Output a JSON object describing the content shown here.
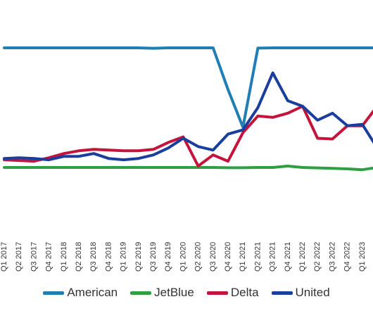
{
  "chart_data": {
    "type": "line",
    "x": [
      "Q1 2017",
      "Q2 2017",
      "Q3 2017",
      "Q4 2017",
      "Q1 2018",
      "Q2 2018",
      "Q3 2018",
      "Q4 2018",
      "Q1 2019",
      "Q2 2019",
      "Q3 2019",
      "Q4 2019",
      "Q1 2020",
      "Q2 2020",
      "Q3 2020",
      "Q4 2020",
      "Q1 2021",
      "Q2 2021",
      "Q3 2021",
      "Q4 2021",
      "Q1 2022",
      "Q2 2022",
      "Q3 2022",
      "Q4 2022",
      "Q1 2023",
      "Q2 2023"
    ],
    "series": [
      {
        "name": "American",
        "color": "#1f7fb5",
        "values": [
          100,
          100,
          100,
          100,
          100,
          100,
          100,
          100,
          100,
          100,
          99.7,
          100,
          100,
          100,
          100,
          70,
          43,
          99.8,
          100,
          100,
          100,
          100,
          100,
          100,
          100,
          100
        ]
      },
      {
        "name": "JetBlue",
        "color": "#2ea043",
        "values": [
          14,
          14,
          14,
          14,
          14,
          14,
          14,
          14,
          14,
          14,
          14,
          14,
          14,
          14,
          14,
          13.8,
          13.8,
          14,
          14,
          15,
          14,
          13.7,
          13.4,
          13,
          12.4,
          14
        ]
      },
      {
        "name": "Delta",
        "color": "#c4143c",
        "values": [
          19.5,
          19,
          18.5,
          21,
          24,
          26,
          27,
          26.5,
          26,
          26,
          27,
          32,
          36,
          15,
          23,
          18.5,
          39,
          51,
          50,
          53,
          58,
          35,
          34.5,
          44,
          44,
          58
        ]
      },
      {
        "name": "United",
        "color": "#1a3e9e",
        "values": [
          20.5,
          21,
          20.5,
          19.5,
          22,
          22,
          24,
          20.5,
          19.5,
          20.5,
          23,
          28,
          35,
          29,
          26.5,
          38,
          41,
          57,
          82,
          62,
          58,
          48,
          53,
          44,
          45,
          28
        ]
      }
    ],
    "y_range": [
      0,
      120
    ],
    "grid": false,
    "legend_position": "bottom"
  }
}
